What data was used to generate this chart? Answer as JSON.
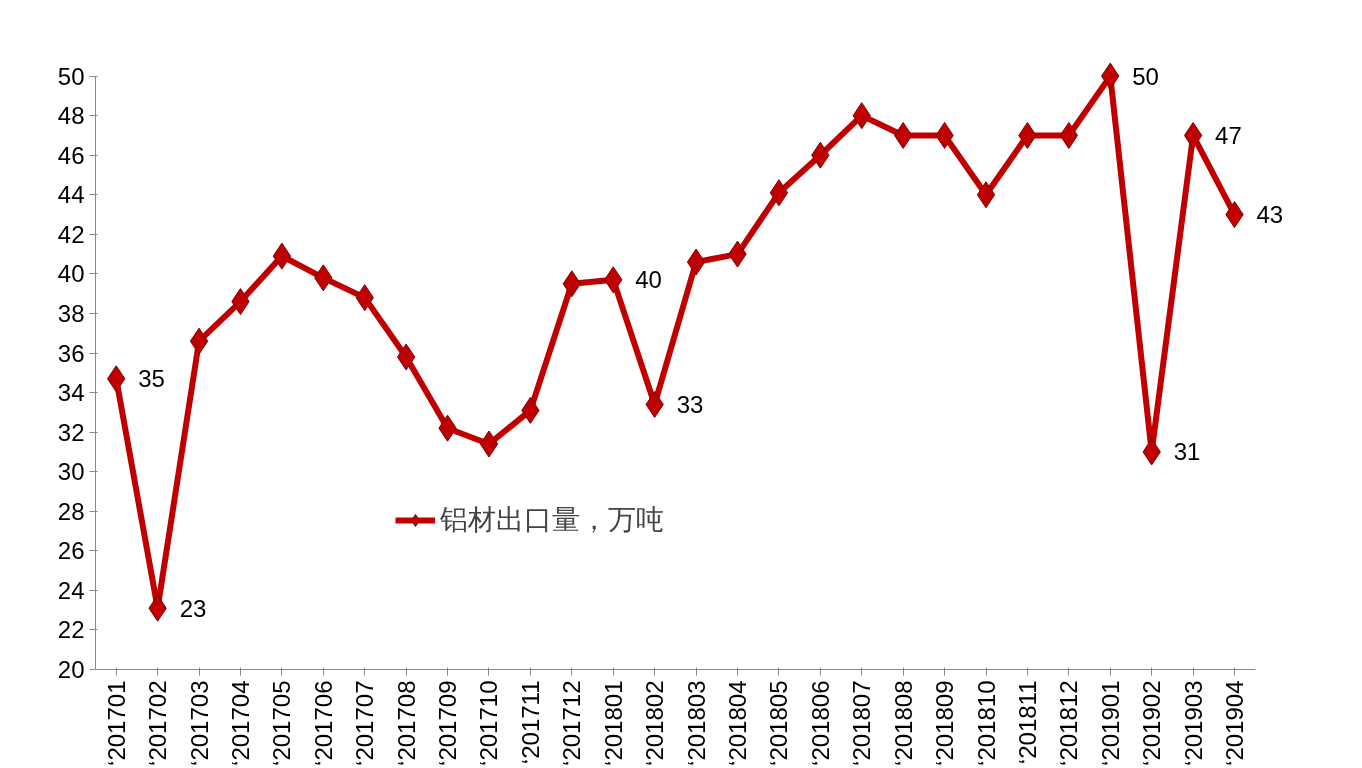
{
  "chart_data": {
    "type": "line",
    "categories": [
      "‘201701",
      "‘201702",
      "‘201703",
      "‘201704",
      "‘201705",
      "‘201706",
      "‘201707",
      "‘201708",
      "‘201709",
      "‘201710",
      "‘201711",
      "‘201712",
      "‘201801",
      "‘201802",
      "‘201803",
      "‘201804",
      "‘201805",
      "‘201806",
      "‘201807",
      "‘201808",
      "‘201809",
      "‘201810",
      "‘201811",
      "‘201812",
      "‘201901",
      "‘201902",
      "‘201903",
      "‘201904"
    ],
    "series": [
      {
        "name": "铝材出口量，万吨",
        "color": "#c00000",
        "values": [
          34.7,
          23.1,
          36.6,
          38.6,
          40.9,
          39.8,
          38.8,
          35.8,
          32.2,
          31.4,
          33.1,
          39.5,
          39.7,
          33.4,
          40.6,
          41.0,
          44.1,
          46.0,
          48.0,
          47.0,
          47.0,
          44.0,
          47.0,
          47.0,
          50.0,
          31.0,
          47.0,
          43.0
        ],
        "value_labels": [
          "35",
          "23",
          null,
          null,
          null,
          null,
          null,
          null,
          null,
          null,
          null,
          null,
          "40",
          "33",
          null,
          null,
          null,
          null,
          null,
          null,
          null,
          null,
          null,
          null,
          "50",
          "31",
          "47",
          "43"
        ]
      }
    ],
    "ylim": [
      20,
      50
    ],
    "yticks": [
      20,
      22,
      24,
      26,
      28,
      30,
      32,
      34,
      36,
      38,
      40,
      42,
      44,
      46,
      48,
      50
    ],
    "grid": false,
    "legend": "center",
    "marker": "diamond",
    "line_style": "solid"
  }
}
